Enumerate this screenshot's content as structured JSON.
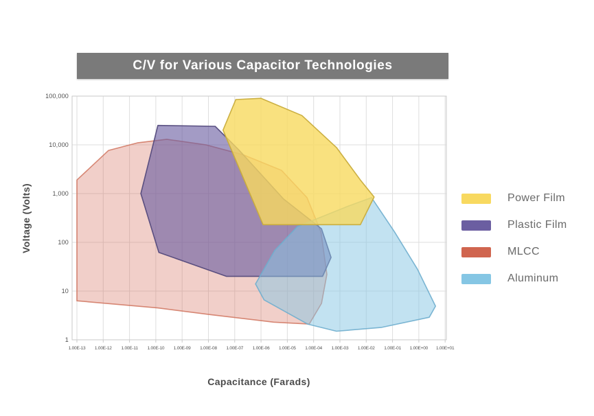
{
  "title": "C/V for Various Capacitor Technologies",
  "axes": {
    "x_label": "Capacitance (Farads)",
    "y_label": "Voltage (Volts)",
    "x_ticks": [
      "1.00E-13",
      "1.00E-12",
      "1.00E-11",
      "1.00E-10",
      "1.00E-09",
      "1.00E-08",
      "1.00E-07",
      "1.00E-06",
      "1.00E-05",
      "1.00E-04",
      "1.00E-03",
      "1.00E-02",
      "1.00E-01",
      "1.00E+00",
      "1.00E+01"
    ],
    "y_ticks": [
      "100,000",
      "10,000",
      "1,000",
      "100",
      "10",
      "1"
    ]
  },
  "legend": [
    {
      "label": "Power Film",
      "color": "#F8D960"
    },
    {
      "label": "Plastic Film",
      "color": "#6B5EA1"
    },
    {
      "label": "MLCC",
      "color": "#D0654F"
    },
    {
      "label": "Aluminum",
      "color": "#85C6E4"
    }
  ],
  "chart_data": {
    "type": "area",
    "title": "C/V for Various Capacitor Technologies",
    "xlabel": "Capacitance (Farads)",
    "ylabel": "Voltage (Volts)",
    "x_scale": "log",
    "y_scale": "log",
    "xlim": [
      1e-13,
      10.0
    ],
    "ylim": [
      1,
      100000.0
    ],
    "grid": true,
    "legend_position": "right",
    "series": [
      {
        "name": "MLCC",
        "fill": "#D2604B",
        "fill_opacity": 0.3,
        "stroke": "#CE6E57",
        "stroke_opacity": 0.8,
        "points": [
          [
            1e-13,
            1900
          ],
          [
            1.6e-12,
            7700
          ],
          [
            2e-11,
            11000
          ],
          [
            2.6e-10,
            13000
          ],
          [
            8.1e-09,
            10000
          ],
          [
            2.2e-07,
            6200
          ],
          [
            6e-06,
            3000
          ],
          [
            5.6e-05,
            825
          ],
          [
            0.00019,
            163
          ],
          [
            0.00032,
            22
          ],
          [
            0.0002,
            5.6
          ],
          [
            6.8e-05,
            2.1
          ],
          [
            3e-06,
            2.3
          ],
          [
            1.1e-08,
            3.3
          ],
          [
            1.2e-10,
            4.5
          ],
          [
            1e-13,
            6.3
          ]
        ]
      },
      {
        "name": "Plastic Film",
        "fill": "#6B5EA1",
        "fill_opacity": 0.62,
        "stroke": "#4F4579",
        "stroke_opacity": 0.9,
        "points": [
          [
            1.2e-10,
            25000
          ],
          [
            1.8e-08,
            24000
          ],
          [
            1.4e-07,
            8000
          ],
          [
            7.2e-06,
            775
          ],
          [
            0.0002,
            190
          ],
          [
            0.00046,
            49
          ],
          [
            0.00022,
            20
          ],
          [
            4.9e-08,
            20
          ],
          [
            1.3e-10,
            62
          ],
          [
            2.7e-11,
            1000
          ]
        ]
      },
      {
        "name": "Aluminum",
        "fill": "#85C6E4",
        "fill_opacity": 0.5,
        "stroke": "#6FAECE",
        "stroke_opacity": 0.9,
        "points": [
          [
            2.4e-05,
            210
          ],
          [
            0.0022,
            560
          ],
          [
            0.016,
            825
          ],
          [
            0.12,
            163
          ],
          [
            0.89,
            28
          ],
          [
            4.3,
            4.9
          ],
          [
            2.5,
            2.9
          ],
          [
            0.039,
            1.8
          ],
          [
            0.00074,
            1.5
          ],
          [
            5.9e-05,
            2.1
          ],
          [
            1.3e-06,
            6.6
          ],
          [
            6.2e-07,
            14
          ],
          [
            3.3e-06,
            68
          ]
        ]
      },
      {
        "name": "Power Film",
        "fill": "#F8D95F",
        "fill_opacity": 0.8,
        "stroke": "#C8AC3C",
        "stroke_opacity": 0.95,
        "points": [
          [
            1.1e-07,
            85000
          ],
          [
            1e-06,
            90000
          ],
          [
            3.6e-05,
            40000
          ],
          [
            0.00074,
            8800
          ],
          [
            0.006,
            1900
          ],
          [
            0.02,
            850
          ],
          [
            0.006,
            230
          ],
          [
            1.2e-06,
            230
          ],
          [
            3.6e-08,
            20000
          ]
        ]
      }
    ]
  }
}
